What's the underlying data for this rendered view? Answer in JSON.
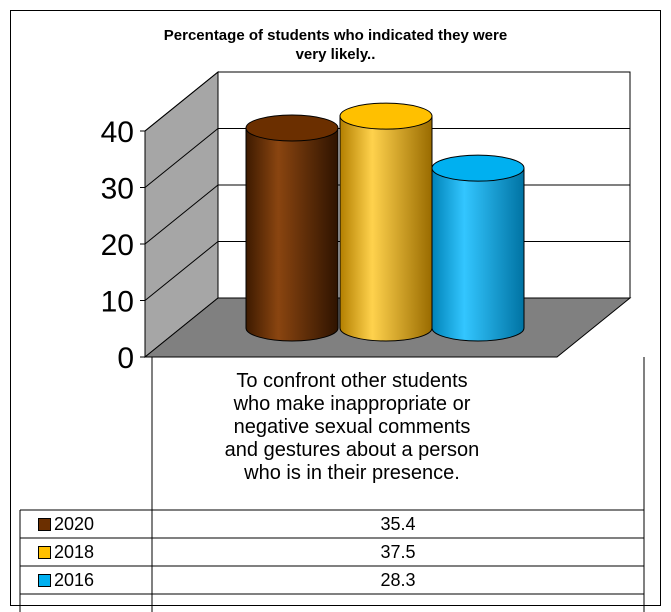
{
  "chart_data": {
    "type": "bar",
    "title_lines": [
      "Percentage of students who indicated they were",
      "very likely.."
    ],
    "categories": [
      "To confront other students who make inappropriate or negative sexual comments and gestures about a person who is in their presence."
    ],
    "category_label_lines": [
      "To confront other students",
      "who make inappropriate or",
      "negative sexual comments",
      "and gestures about a person",
      "who is in their presence."
    ],
    "series": [
      {
        "name": "2020",
        "values": [
          35.4
        ],
        "color": "#6B2F00"
      },
      {
        "name": "2018",
        "values": [
          37.5
        ],
        "color": "#FFC000"
      },
      {
        "name": "2016",
        "values": [
          28.3
        ],
        "color": "#00B0F0"
      }
    ],
    "y_ticks": [
      "0",
      "10",
      "20",
      "30",
      "40"
    ],
    "ylim": [
      0,
      40
    ],
    "grid": true,
    "style": "3d-cylinder",
    "legend": "data-table"
  }
}
